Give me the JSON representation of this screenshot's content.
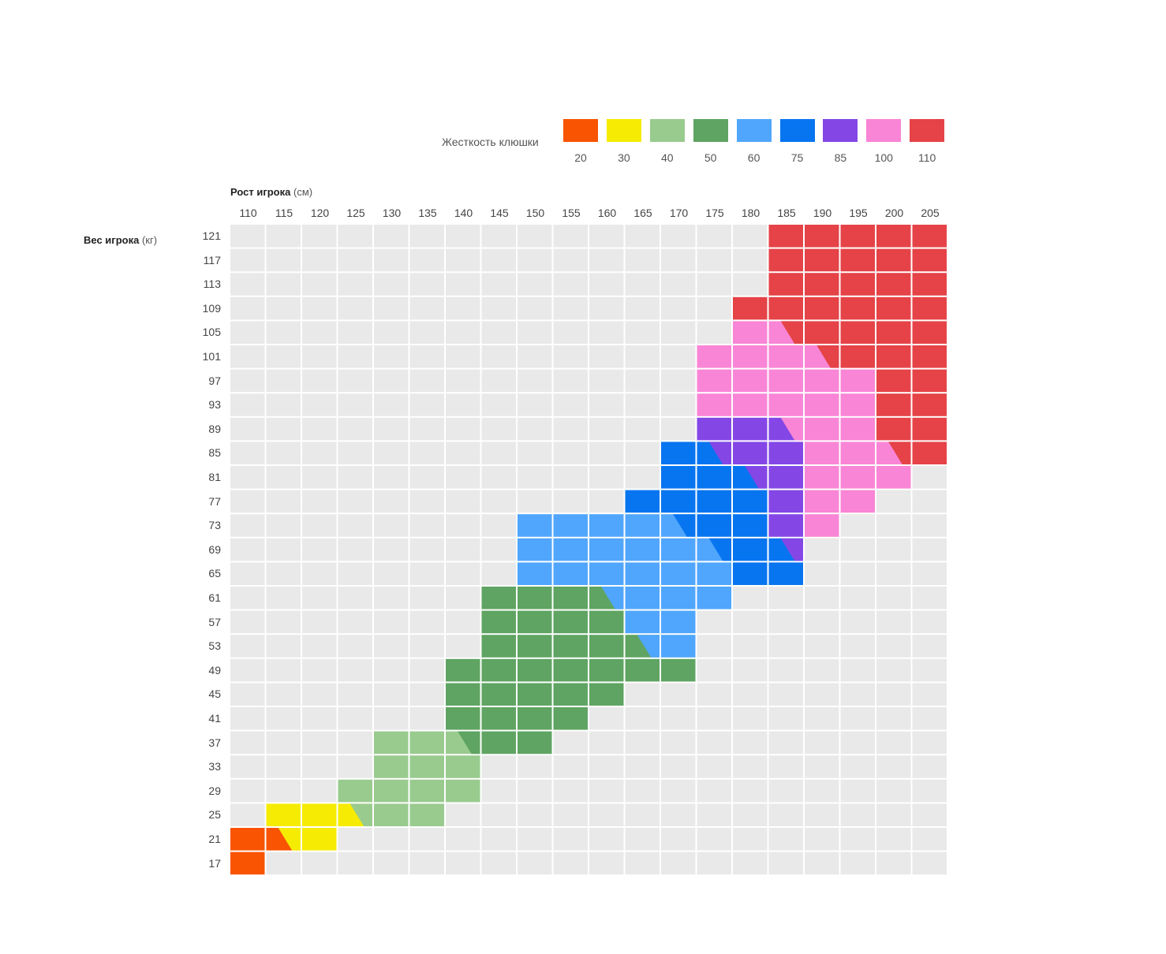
{
  "chart_data": {
    "type": "heatmap",
    "legend": {
      "title": "Жесткость клюшки",
      "items": [
        {
          "value": "20",
          "color": "#f85402"
        },
        {
          "value": "30",
          "color": "#f6eb02"
        },
        {
          "value": "40",
          "color": "#99cb8f"
        },
        {
          "value": "50",
          "color": "#5fa462"
        },
        {
          "value": "60",
          "color": "#50a6fc"
        },
        {
          "value": "75",
          "color": "#0875f0"
        },
        {
          "value": "85",
          "color": "#8447e6"
        },
        {
          "value": "100",
          "color": "#f985d6"
        },
        {
          "value": "110",
          "color": "#e54347"
        }
      ]
    },
    "x_axis": {
      "title": "Рост игрока",
      "unit": "(см)",
      "ticks": [
        "110",
        "115",
        "120",
        "125",
        "130",
        "135",
        "140",
        "145",
        "150",
        "155",
        "160",
        "165",
        "170",
        "175",
        "180",
        "185",
        "190",
        "195",
        "200",
        "205"
      ]
    },
    "y_axis": {
      "title": "Вес игрока",
      "unit": "(кг)",
      "ticks": [
        "121",
        "117",
        "113",
        "109",
        "105",
        "101",
        "97",
        "93",
        "89",
        "85",
        "81",
        "77",
        "73",
        "69",
        "65",
        "61",
        "57",
        "53",
        "49",
        "45",
        "41",
        "37",
        "33",
        "29",
        "25",
        "21",
        "17"
      ]
    },
    "empty_color": "#e9e9e9",
    "cells": [
      {
        "height": 185,
        "weight": 121,
        "flex": 110
      },
      {
        "height": 190,
        "weight": 121,
        "flex": 110
      },
      {
        "height": 195,
        "weight": 121,
        "flex": 110
      },
      {
        "height": 200,
        "weight": 121,
        "flex": 110
      },
      {
        "height": 205,
        "weight": 121,
        "flex": 110
      },
      {
        "height": 185,
        "weight": 117,
        "flex": 110
      },
      {
        "height": 190,
        "weight": 117,
        "flex": 110
      },
      {
        "height": 195,
        "weight": 117,
        "flex": 110
      },
      {
        "height": 200,
        "weight": 117,
        "flex": 110
      },
      {
        "height": 205,
        "weight": 117,
        "flex": 110
      },
      {
        "height": 185,
        "weight": 113,
        "flex": 110
      },
      {
        "height": 190,
        "weight": 113,
        "flex": 110
      },
      {
        "height": 195,
        "weight": 113,
        "flex": 110
      },
      {
        "height": 200,
        "weight": 113,
        "flex": 110
      },
      {
        "height": 205,
        "weight": 113,
        "flex": 110
      },
      {
        "height": 180,
        "weight": 109,
        "flex": 110
      },
      {
        "height": 185,
        "weight": 109,
        "flex": 110
      },
      {
        "height": 190,
        "weight": 109,
        "flex": 110
      },
      {
        "height": 195,
        "weight": 109,
        "flex": 110
      },
      {
        "height": 200,
        "weight": 109,
        "flex": 110
      },
      {
        "height": 205,
        "weight": 109,
        "flex": 110
      },
      {
        "height": 180,
        "weight": 105,
        "flex": 100
      },
      {
        "height": 185,
        "weight": 105,
        "flex": 100,
        "flex2": 110
      },
      {
        "height": 190,
        "weight": 105,
        "flex": 110
      },
      {
        "height": 195,
        "weight": 105,
        "flex": 110
      },
      {
        "height": 200,
        "weight": 105,
        "flex": 110
      },
      {
        "height": 205,
        "weight": 105,
        "flex": 110
      },
      {
        "height": 175,
        "weight": 101,
        "flex": 100
      },
      {
        "height": 180,
        "weight": 101,
        "flex": 100
      },
      {
        "height": 185,
        "weight": 101,
        "flex": 100
      },
      {
        "height": 190,
        "weight": 101,
        "flex": 100,
        "flex2": 110
      },
      {
        "height": 195,
        "weight": 101,
        "flex": 110
      },
      {
        "height": 200,
        "weight": 101,
        "flex": 110
      },
      {
        "height": 205,
        "weight": 101,
        "flex": 110
      },
      {
        "height": 175,
        "weight": 97,
        "flex": 100
      },
      {
        "height": 180,
        "weight": 97,
        "flex": 100
      },
      {
        "height": 185,
        "weight": 97,
        "flex": 100
      },
      {
        "height": 190,
        "weight": 97,
        "flex": 100
      },
      {
        "height": 195,
        "weight": 97,
        "flex": 100
      },
      {
        "height": 200,
        "weight": 97,
        "flex": 110
      },
      {
        "height": 205,
        "weight": 97,
        "flex": 110
      },
      {
        "height": 175,
        "weight": 93,
        "flex": 100
      },
      {
        "height": 180,
        "weight": 93,
        "flex": 100
      },
      {
        "height": 185,
        "weight": 93,
        "flex": 100
      },
      {
        "height": 190,
        "weight": 93,
        "flex": 100
      },
      {
        "height": 195,
        "weight": 93,
        "flex": 100
      },
      {
        "height": 200,
        "weight": 93,
        "flex": 110
      },
      {
        "height": 205,
        "weight": 93,
        "flex": 110
      },
      {
        "height": 175,
        "weight": 89,
        "flex": 85
      },
      {
        "height": 180,
        "weight": 89,
        "flex": 85
      },
      {
        "height": 185,
        "weight": 89,
        "flex": 85,
        "flex2": 100
      },
      {
        "height": 190,
        "weight": 89,
        "flex": 100
      },
      {
        "height": 195,
        "weight": 89,
        "flex": 100
      },
      {
        "height": 200,
        "weight": 89,
        "flex": 110
      },
      {
        "height": 205,
        "weight": 89,
        "flex": 110
      },
      {
        "height": 170,
        "weight": 85,
        "flex": 75
      },
      {
        "height": 175,
        "weight": 85,
        "flex": 75,
        "flex2": 85
      },
      {
        "height": 180,
        "weight": 85,
        "flex": 85
      },
      {
        "height": 185,
        "weight": 85,
        "flex": 85
      },
      {
        "height": 190,
        "weight": 85,
        "flex": 100
      },
      {
        "height": 195,
        "weight": 85,
        "flex": 100
      },
      {
        "height": 200,
        "weight": 85,
        "flex": 100,
        "flex2": 110
      },
      {
        "height": 205,
        "weight": 85,
        "flex": 110
      },
      {
        "height": 170,
        "weight": 81,
        "flex": 75
      },
      {
        "height": 175,
        "weight": 81,
        "flex": 75
      },
      {
        "height": 180,
        "weight": 81,
        "flex": 75,
        "flex2": 85
      },
      {
        "height": 185,
        "weight": 81,
        "flex": 85
      },
      {
        "height": 190,
        "weight": 81,
        "flex": 100
      },
      {
        "height": 195,
        "weight": 81,
        "flex": 100
      },
      {
        "height": 200,
        "weight": 81,
        "flex": 100
      },
      {
        "height": 165,
        "weight": 77,
        "flex": 75
      },
      {
        "height": 170,
        "weight": 77,
        "flex": 75
      },
      {
        "height": 175,
        "weight": 77,
        "flex": 75
      },
      {
        "height": 180,
        "weight": 77,
        "flex": 75
      },
      {
        "height": 185,
        "weight": 77,
        "flex": 85
      },
      {
        "height": 190,
        "weight": 77,
        "flex": 100
      },
      {
        "height": 195,
        "weight": 77,
        "flex": 100
      },
      {
        "height": 150,
        "weight": 73,
        "flex": 60
      },
      {
        "height": 155,
        "weight": 73,
        "flex": 60
      },
      {
        "height": 160,
        "weight": 73,
        "flex": 60
      },
      {
        "height": 165,
        "weight": 73,
        "flex": 60
      },
      {
        "height": 170,
        "weight": 73,
        "flex": 60,
        "flex2": 75
      },
      {
        "height": 175,
        "weight": 73,
        "flex": 75
      },
      {
        "height": 180,
        "weight": 73,
        "flex": 75
      },
      {
        "height": 185,
        "weight": 73,
        "flex": 85
      },
      {
        "height": 190,
        "weight": 73,
        "flex": 100
      },
      {
        "height": 150,
        "weight": 69,
        "flex": 60
      },
      {
        "height": 155,
        "weight": 69,
        "flex": 60
      },
      {
        "height": 160,
        "weight": 69,
        "flex": 60
      },
      {
        "height": 165,
        "weight": 69,
        "flex": 60
      },
      {
        "height": 170,
        "weight": 69,
        "flex": 60
      },
      {
        "height": 175,
        "weight": 69,
        "flex": 60,
        "flex2": 75
      },
      {
        "height": 180,
        "weight": 69,
        "flex": 75
      },
      {
        "height": 185,
        "weight": 69,
        "flex": 75,
        "flex2": 85
      },
      {
        "height": 150,
        "weight": 65,
        "flex": 60
      },
      {
        "height": 155,
        "weight": 65,
        "flex": 60
      },
      {
        "height": 160,
        "weight": 65,
        "flex": 60
      },
      {
        "height": 165,
        "weight": 65,
        "flex": 60
      },
      {
        "height": 170,
        "weight": 65,
        "flex": 60
      },
      {
        "height": 175,
        "weight": 65,
        "flex": 60
      },
      {
        "height": 180,
        "weight": 65,
        "flex": 75
      },
      {
        "height": 185,
        "weight": 65,
        "flex": 75
      },
      {
        "height": 145,
        "weight": 61,
        "flex": 50
      },
      {
        "height": 150,
        "weight": 61,
        "flex": 50
      },
      {
        "height": 155,
        "weight": 61,
        "flex": 50
      },
      {
        "height": 160,
        "weight": 61,
        "flex": 50,
        "flex2": 60
      },
      {
        "height": 165,
        "weight": 61,
        "flex": 60
      },
      {
        "height": 170,
        "weight": 61,
        "flex": 60
      },
      {
        "height": 175,
        "weight": 61,
        "flex": 60
      },
      {
        "height": 145,
        "weight": 57,
        "flex": 50
      },
      {
        "height": 150,
        "weight": 57,
        "flex": 50
      },
      {
        "height": 155,
        "weight": 57,
        "flex": 50
      },
      {
        "height": 160,
        "weight": 57,
        "flex": 50
      },
      {
        "height": 165,
        "weight": 57,
        "flex": 60
      },
      {
        "height": 170,
        "weight": 57,
        "flex": 60
      },
      {
        "height": 145,
        "weight": 53,
        "flex": 50
      },
      {
        "height": 150,
        "weight": 53,
        "flex": 50
      },
      {
        "height": 155,
        "weight": 53,
        "flex": 50
      },
      {
        "height": 160,
        "weight": 53,
        "flex": 50
      },
      {
        "height": 165,
        "weight": 53,
        "flex": 50,
        "flex2": 60
      },
      {
        "height": 170,
        "weight": 53,
        "flex": 60
      },
      {
        "height": 140,
        "weight": 49,
        "flex": 50
      },
      {
        "height": 145,
        "weight": 49,
        "flex": 50
      },
      {
        "height": 150,
        "weight": 49,
        "flex": 50
      },
      {
        "height": 155,
        "weight": 49,
        "flex": 50
      },
      {
        "height": 160,
        "weight": 49,
        "flex": 50
      },
      {
        "height": 165,
        "weight": 49,
        "flex": 50
      },
      {
        "height": 170,
        "weight": 49,
        "flex": 50
      },
      {
        "height": 140,
        "weight": 45,
        "flex": 50
      },
      {
        "height": 145,
        "weight": 45,
        "flex": 50
      },
      {
        "height": 150,
        "weight": 45,
        "flex": 50
      },
      {
        "height": 155,
        "weight": 45,
        "flex": 50
      },
      {
        "height": 160,
        "weight": 45,
        "flex": 50
      },
      {
        "height": 140,
        "weight": 41,
        "flex": 50
      },
      {
        "height": 145,
        "weight": 41,
        "flex": 50
      },
      {
        "height": 150,
        "weight": 41,
        "flex": 50
      },
      {
        "height": 155,
        "weight": 41,
        "flex": 50
      },
      {
        "height": 130,
        "weight": 37,
        "flex": 40
      },
      {
        "height": 135,
        "weight": 37,
        "flex": 40
      },
      {
        "height": 140,
        "weight": 37,
        "flex": 40,
        "flex2": 50
      },
      {
        "height": 145,
        "weight": 37,
        "flex": 50
      },
      {
        "height": 150,
        "weight": 37,
        "flex": 50
      },
      {
        "height": 130,
        "weight": 33,
        "flex": 40
      },
      {
        "height": 135,
        "weight": 33,
        "flex": 40
      },
      {
        "height": 140,
        "weight": 33,
        "flex": 40
      },
      {
        "height": 125,
        "weight": 29,
        "flex": 40
      },
      {
        "height": 130,
        "weight": 29,
        "flex": 40
      },
      {
        "height": 135,
        "weight": 29,
        "flex": 40
      },
      {
        "height": 140,
        "weight": 29,
        "flex": 40
      },
      {
        "height": 115,
        "weight": 25,
        "flex": 30
      },
      {
        "height": 120,
        "weight": 25,
        "flex": 30
      },
      {
        "height": 125,
        "weight": 25,
        "flex": 30,
        "flex2": 40
      },
      {
        "height": 130,
        "weight": 25,
        "flex": 40
      },
      {
        "height": 135,
        "weight": 25,
        "flex": 40
      },
      {
        "height": 110,
        "weight": 21,
        "flex": 20
      },
      {
        "height": 115,
        "weight": 21,
        "flex": 20,
        "flex2": 30
      },
      {
        "height": 120,
        "weight": 21,
        "flex": 30
      },
      {
        "height": 110,
        "weight": 17,
        "flex": 20
      }
    ]
  }
}
